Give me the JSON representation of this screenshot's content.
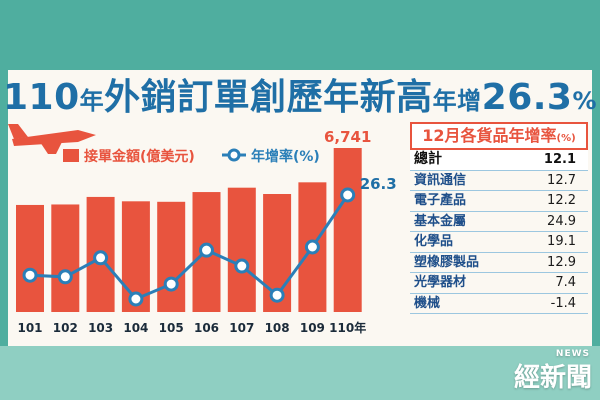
{
  "headline": {
    "part1": "110",
    "part2": "年",
    "part3": "外銷訂單創歷年新高",
    "part4": "年增",
    "part5": "26.3",
    "part6": "%"
  },
  "chart_data": {
    "type": "bar",
    "categories": [
      "101",
      "102",
      "103",
      "104",
      "105",
      "106",
      "107",
      "108",
      "109",
      "110年"
    ],
    "series": [
      {
        "name": "接單金額(億美元)",
        "type": "bar",
        "values": [
          4400,
          4420,
          4730,
          4550,
          4530,
          4930,
          5110,
          4850,
          5330,
          6741
        ],
        "color": "#e8543e"
      },
      {
        "name": "年增率(%)",
        "type": "line",
        "values": [
          1.0,
          0.5,
          6.5,
          -6.5,
          -1.8,
          8.9,
          3.9,
          -5.3,
          9.9,
          26.3
        ],
        "color": "#2b7fb8"
      }
    ],
    "labels": {
      "first_bar": "6,741",
      "last_point": "26.3"
    },
    "legend": {
      "bar": "接單金額(億美元)",
      "line": "年增率(%)"
    }
  },
  "panel": {
    "title": "12月各貨品年增率",
    "unit": "(%)",
    "rows": [
      {
        "label": "總計",
        "value": "12.1",
        "total": true
      },
      {
        "label": "資訊通信",
        "value": "12.7"
      },
      {
        "label": "電子產品",
        "value": "12.2"
      },
      {
        "label": "基本金屬",
        "value": "24.9"
      },
      {
        "label": "化學品",
        "value": "19.1"
      },
      {
        "label": "塑橡膠製品",
        "value": "12.9"
      },
      {
        "label": "光學器材",
        "value": "7.4"
      },
      {
        "label": "機械",
        "value": "-1.4"
      }
    ]
  },
  "logo": {
    "main": "經新聞",
    "tag": "NEWS"
  },
  "icons": [
    "airplane-icon",
    "cargo-port-icon"
  ]
}
